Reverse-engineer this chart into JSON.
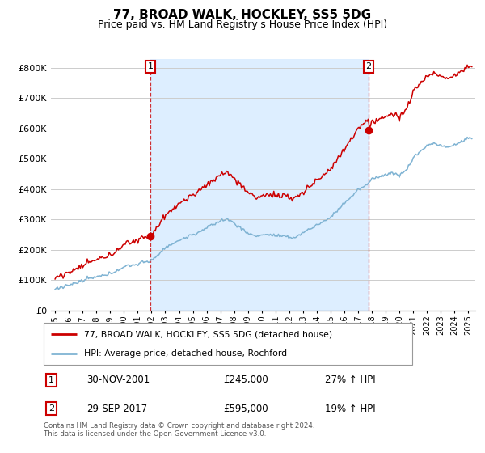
{
  "title": "77, BROAD WALK, HOCKLEY, SS5 5DG",
  "subtitle": "Price paid vs. HM Land Registry's House Price Index (HPI)",
  "ylabel_ticks": [
    "£0",
    "£100K",
    "£200K",
    "£300K",
    "£400K",
    "£500K",
    "£600K",
    "£700K",
    "£800K"
  ],
  "ylim": [
    0,
    830000
  ],
  "xlim_start": 1994.7,
  "xlim_end": 2025.5,
  "sale1_x": 2001.917,
  "sale1_y": 245000,
  "sale2_x": 2017.75,
  "sale2_y": 595000,
  "line_color_property": "#cc0000",
  "line_color_hpi": "#7fb3d3",
  "shade_color": "#ddeeff",
  "background_color": "#ffffff",
  "grid_color": "#cccccc",
  "annotation_box_color": "#cc0000",
  "legend_label_property": "77, BROAD WALK, HOCKLEY, SS5 5DG (detached house)",
  "legend_label_hpi": "HPI: Average price, detached house, Rochford",
  "table_row1": [
    "1",
    "30-NOV-2001",
    "£245,000",
    "27% ↑ HPI"
  ],
  "table_row2": [
    "2",
    "29-SEP-2017",
    "£595,000",
    "19% ↑ HPI"
  ],
  "footnote": "Contains HM Land Registry data © Crown copyright and database right 2024.\nThis data is licensed under the Open Government Licence v3.0.",
  "title_fontsize": 11,
  "subtitle_fontsize": 9,
  "tick_fontsize": 8
}
